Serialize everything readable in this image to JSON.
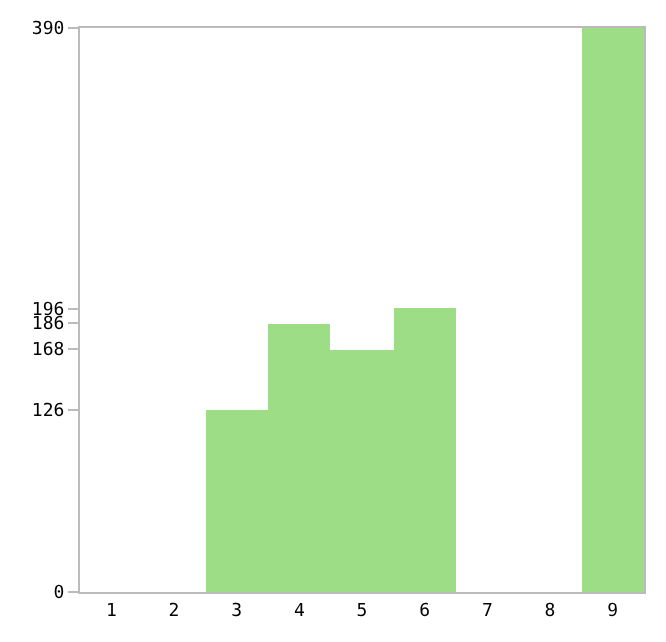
{
  "chart_data": {
    "type": "bar",
    "categories": [
      "1",
      "2",
      "3",
      "4",
      "5",
      "6",
      "7",
      "8",
      "9"
    ],
    "values": [
      0,
      0,
      126,
      186,
      168,
      196,
      0,
      0,
      390
    ],
    "color": "#9cdd86",
    "ylim": [
      0,
      390
    ],
    "yticks": [
      0,
      126,
      168,
      186,
      196,
      390
    ],
    "legend": false
  }
}
